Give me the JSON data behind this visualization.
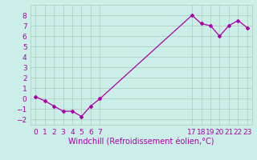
{
  "x_values": [
    0,
    1,
    2,
    3,
    4,
    5,
    6,
    7,
    17,
    18,
    19,
    20,
    21,
    22,
    23
  ],
  "y_values": [
    0.2,
    -0.2,
    -0.7,
    -1.2,
    -1.2,
    -1.7,
    -0.7,
    0.0,
    8.0,
    7.2,
    7.0,
    6.0,
    7.0,
    7.5,
    6.8
  ],
  "x_tick_positions": [
    0,
    1,
    2,
    3,
    4,
    5,
    6,
    7,
    17,
    18,
    19,
    20,
    21,
    22,
    23
  ],
  "x_tick_labels": [
    "0",
    "1",
    "2",
    "3",
    "4",
    "5",
    "6",
    "7",
    "17",
    "18",
    "19",
    "20",
    "21",
    "22",
    "23"
  ],
  "ylim": [
    -2.5,
    9.0
  ],
  "xlim": [
    -0.5,
    23.5
  ],
  "yticks": [
    -2,
    -1,
    0,
    1,
    2,
    3,
    4,
    5,
    6,
    7,
    8
  ],
  "line_color": "#aa00aa",
  "marker": "D",
  "marker_size": 2,
  "bg_color": "#cceee8",
  "grid_color": "#aaccbb",
  "xlabel": "Windchill (Refroidissement éolien,°C)",
  "xlabel_fontsize": 7,
  "tick_fontsize": 6.5,
  "line_width": 0.9
}
